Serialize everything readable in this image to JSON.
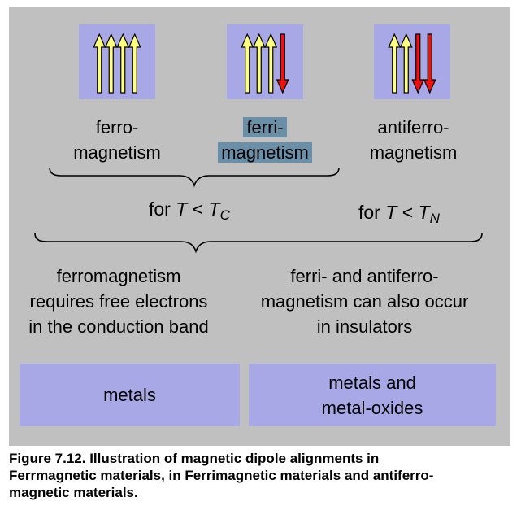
{
  "diagram": {
    "arrow_groups": [
      {
        "name": "ferromagnetism",
        "arrows": [
          "up",
          "up",
          "up",
          "up"
        ]
      },
      {
        "name": "ferrimagnetism",
        "arrows": [
          "up",
          "up",
          "up",
          "down"
        ]
      },
      {
        "name": "antiferromagnetism",
        "arrows": [
          "up",
          "up",
          "down",
          "down"
        ]
      }
    ],
    "labels": {
      "ferro_line1": "ferro-",
      "ferro_line2": "magnetism",
      "ferri_line1": "ferri-",
      "ferri_line2": "magnetism",
      "antiferro_line1": "antiferro-",
      "antiferro_line2": "magnetism"
    },
    "conditions": {
      "curie": {
        "prefix": "for",
        "var": "T",
        "op": "<",
        "sym": "T",
        "sub": "C"
      },
      "neel": {
        "prefix": "for",
        "var": "T",
        "op": "<",
        "sym": "T",
        "sub": "N"
      }
    },
    "descriptions": {
      "left": [
        "ferromagnetism",
        "requires free electrons",
        "in the conduction band"
      ],
      "right": [
        "ferri- and antiferro-",
        "magnetism can also occur",
        "in insulators"
      ]
    },
    "boxes": {
      "left": [
        "metals"
      ],
      "right": [
        "metals and",
        "metal-oxides"
      ]
    },
    "colors": {
      "panel": "#c0c0c0",
      "box": "#a8a8e6",
      "arrow_up": "#ffff80",
      "arrow_down": "#ee1111",
      "highlight": "#6a8fa8"
    }
  },
  "caption": {
    "line1": "Figure 7.12. Illustration of magnetic dipole alignments in",
    "line2": "Ferrmagnetic materials, in Ferrimagnetic materials and antiferro-",
    "line3": "magnetic materials."
  }
}
